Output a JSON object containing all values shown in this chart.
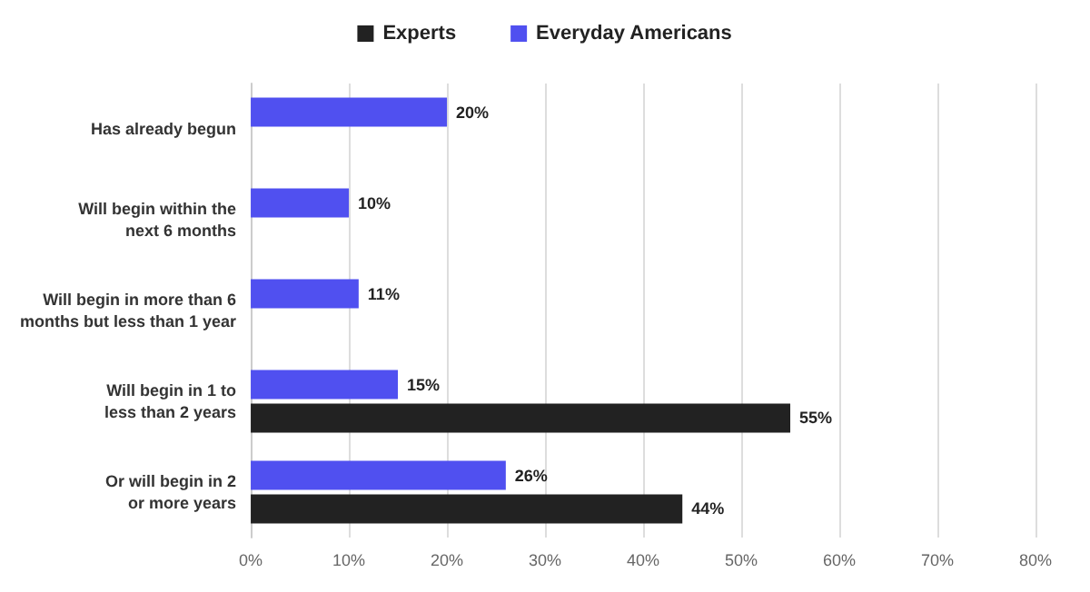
{
  "chart_data": {
    "type": "bar",
    "orientation": "horizontal",
    "categories": [
      "Has already begun",
      "Will begin within the\nnext 6 months",
      "Will begin in more than 6\nmonths but less than 1 year",
      "Will begin in 1 to\nless than 2 years",
      "Or will begin in 2\nor more years"
    ],
    "series": [
      {
        "name": "Experts",
        "color": "#222222",
        "values": [
          null,
          null,
          null,
          55,
          44
        ],
        "value_labels": [
          null,
          null,
          null,
          "55%",
          "44%"
        ]
      },
      {
        "name": "Everyday Americans",
        "color": "#5050f0",
        "values": [
          20,
          10,
          11,
          15,
          26
        ],
        "value_labels": [
          "20%",
          "10%",
          "11%",
          "15%",
          "26%"
        ]
      }
    ],
    "xlim": [
      0,
      80
    ],
    "xticks": [
      {
        "value": 0,
        "label": "0%"
      },
      {
        "value": 10,
        "label": "10%"
      },
      {
        "value": 20,
        "label": "20%"
      },
      {
        "value": 30,
        "label": "30%"
      },
      {
        "value": 40,
        "label": "40%"
      },
      {
        "value": 50,
        "label": "50%"
      },
      {
        "value": 60,
        "label": "60%"
      },
      {
        "value": 70,
        "label": "70%"
      },
      {
        "value": 80,
        "label": "80%"
      }
    ],
    "grid": "x",
    "legend": "top"
  }
}
